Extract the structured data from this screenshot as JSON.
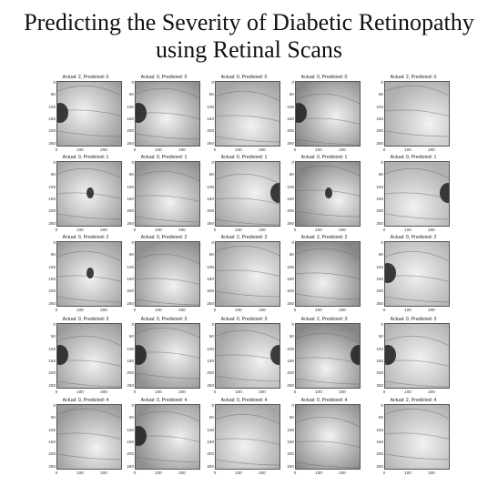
{
  "title_line1": "Predicting the Severity of Diabetic Retinopathy",
  "title_line2": "using Retinal Scans",
  "y_ticks": [
    "0",
    "50",
    "100",
    "150",
    "200",
    "250"
  ],
  "x_ticks": [
    "0",
    "100",
    "200"
  ],
  "panels": [
    {
      "caption": "Actual: 2, Predicted: 0",
      "disc": "left"
    },
    {
      "caption": "Actual: 0, Predicted: 0",
      "disc": "left"
    },
    {
      "caption": "Actual: 0, Predicted: 0",
      "disc": "none"
    },
    {
      "caption": "Actual: 0, Predicted: 0",
      "disc": "left"
    },
    {
      "caption": "Actual: 2, Predicted: 0",
      "disc": "none"
    },
    {
      "caption": "Actual: 0, Predicted: 1",
      "disc": "center"
    },
    {
      "caption": "Actual: 0, Predicted: 1",
      "disc": "none"
    },
    {
      "caption": "Actual: 0, Predicted: 1",
      "disc": "right"
    },
    {
      "caption": "Actual: 0, Predicted: 1",
      "disc": "center"
    },
    {
      "caption": "Actual: 0, Predicted: 1",
      "disc": "right"
    },
    {
      "caption": "Actual: 0, Predicted: 2",
      "disc": "center"
    },
    {
      "caption": "Actual: 0, Predicted: 2",
      "disc": "none"
    },
    {
      "caption": "Actual: 2, Predicted: 2",
      "disc": "none"
    },
    {
      "caption": "Actual: 2, Predicted: 2",
      "disc": "none"
    },
    {
      "caption": "Actual: 0, Predicted: 2",
      "disc": "left"
    },
    {
      "caption": "Actual: 0, Predicted: 3",
      "disc": "left"
    },
    {
      "caption": "Actual: 0, Predicted: 3",
      "disc": "left"
    },
    {
      "caption": "Actual: 0, Predicted: 3",
      "disc": "right"
    },
    {
      "caption": "Actual: 2, Predicted: 3",
      "disc": "right"
    },
    {
      "caption": "Actual: 0, Predicted: 3",
      "disc": "left"
    },
    {
      "caption": "Actual: 0, Predicted: 4",
      "disc": "none"
    },
    {
      "caption": "Actual: 0, Predicted: 4",
      "disc": "left"
    },
    {
      "caption": "Actual: 0, Predicted: 4",
      "disc": "none"
    },
    {
      "caption": "Actual: 0, Predicted: 4",
      "disc": "none"
    },
    {
      "caption": "Actual: 2, Predicted: 4",
      "disc": "none"
    }
  ]
}
